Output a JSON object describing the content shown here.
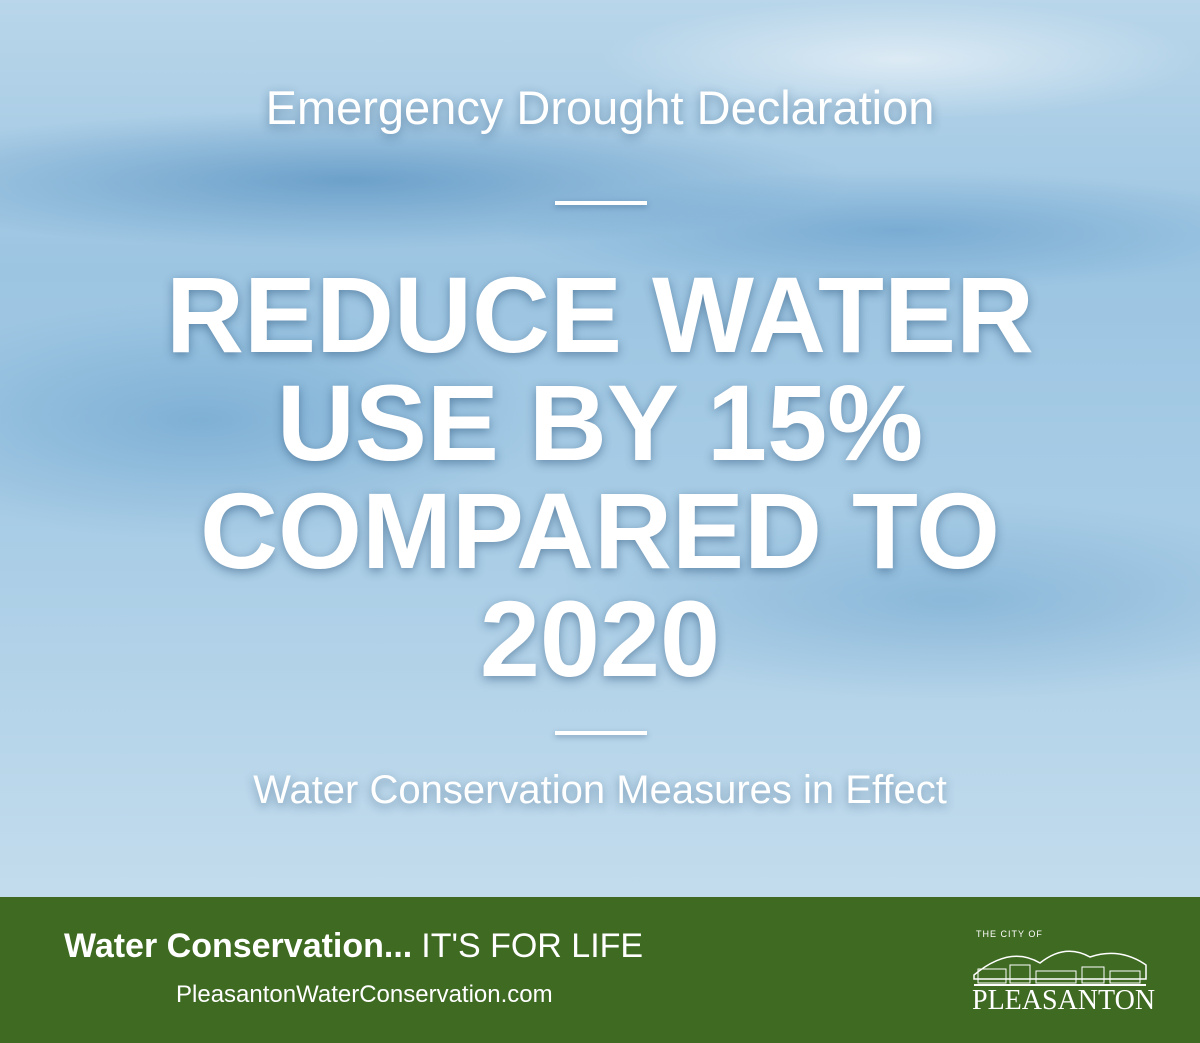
{
  "header": {
    "title": "Emergency Drought Declaration"
  },
  "headline": {
    "lines": [
      "REDUCE WATER",
      "USE BY 15%",
      "COMPARED TO",
      "2020"
    ]
  },
  "subtitle": "Water Conservation Measures in Effect",
  "footer": {
    "slogan_bold": "Water Conservation...",
    "slogan": "IT'S FOR LIFE",
    "url": "PleasantonWaterConservation.com",
    "logo": {
      "prefix": "THE CITY OF",
      "name": "PLEASANTON"
    }
  }
}
